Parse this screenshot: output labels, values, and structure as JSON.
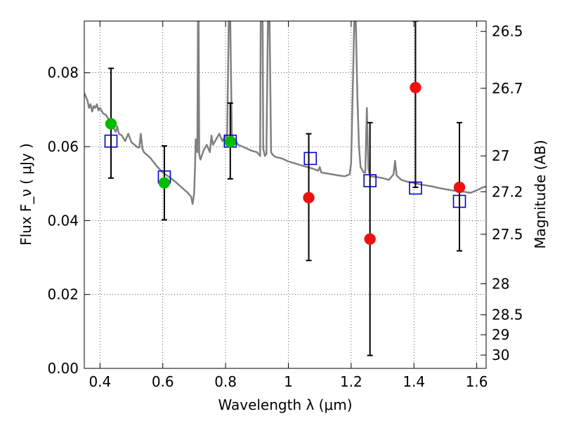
{
  "chart_data": {
    "type": "scatter",
    "xlabel": "Wavelength  λ (μm)",
    "ylabel": "Flux  F_ν  ( μJy )",
    "ylabel_right": "Magnitude (AB)",
    "xlim": [
      0.35,
      1.63
    ],
    "ylim": [
      0.0,
      0.094
    ],
    "x_ticks": [
      0.4,
      0.6,
      0.8,
      1.0,
      1.2,
      1.4,
      1.6
    ],
    "x_tick_labels": [
      "0.4",
      "0.6",
      "0.8",
      "1",
      "1.2",
      "1.4",
      "1.6"
    ],
    "y_ticks": [
      0.0,
      0.02,
      0.04,
      0.06,
      0.08
    ],
    "y_tick_labels": [
      "0.00",
      "0.02",
      "0.04",
      "0.06",
      "0.08"
    ],
    "right_ticks": [
      {
        "label": "26.5",
        "flux": 0.0912
      },
      {
        "label": "26.7",
        "flux": 0.0758
      },
      {
        "label": "27",
        "flux": 0.0575
      },
      {
        "label": "27.2",
        "flux": 0.0478
      },
      {
        "label": "27.5",
        "flux": 0.0363
      },
      {
        "label": "28",
        "flux": 0.0229
      },
      {
        "label": "28.5",
        "flux": 0.0145
      },
      {
        "label": "29",
        "flux": 0.0091
      },
      {
        "label": "30",
        "flux": 0.0036
      }
    ],
    "grid": true,
    "series": [
      {
        "kind": "template-spectrum",
        "color": "#808080",
        "points": [
          [
            0.35,
            0.0745
          ],
          [
            0.36,
            0.0725
          ],
          [
            0.365,
            0.0705
          ],
          [
            0.37,
            0.0715
          ],
          [
            0.375,
            0.0695
          ],
          [
            0.38,
            0.071
          ],
          [
            0.385,
            0.0705
          ],
          [
            0.39,
            0.0715
          ],
          [
            0.395,
            0.0698
          ],
          [
            0.4,
            0.0705
          ],
          [
            0.41,
            0.069
          ],
          [
            0.42,
            0.0685
          ],
          [
            0.43,
            0.067
          ],
          [
            0.44,
            0.0655
          ],
          [
            0.45,
            0.064
          ],
          [
            0.455,
            0.0655
          ],
          [
            0.46,
            0.0635
          ],
          [
            0.47,
            0.063
          ],
          [
            0.48,
            0.0615
          ],
          [
            0.49,
            0.0635
          ],
          [
            0.5,
            0.0612
          ],
          [
            0.51,
            0.0605
          ],
          [
            0.52,
            0.0598
          ],
          [
            0.525,
            0.0598
          ],
          [
            0.53,
            0.0635
          ],
          [
            0.535,
            0.0595
          ],
          [
            0.54,
            0.0585
          ],
          [
            0.56,
            0.057
          ],
          [
            0.58,
            0.0548
          ],
          [
            0.6,
            0.053
          ],
          [
            0.62,
            0.0518
          ],
          [
            0.64,
            0.0505
          ],
          [
            0.66,
            0.049
          ],
          [
            0.68,
            0.0475
          ],
          [
            0.69,
            0.0465
          ],
          [
            0.695,
            0.0445
          ],
          [
            0.7,
            0.0475
          ],
          [
            0.703,
            0.055
          ],
          [
            0.705,
            0.062
          ],
          [
            0.708,
            0.0605
          ],
          [
            0.71,
            0.0585
          ],
          [
            0.712,
            0.094
          ],
          [
            0.714,
            0.094
          ],
          [
            0.716,
            0.058
          ],
          [
            0.72,
            0.0565
          ],
          [
            0.73,
            0.059
          ],
          [
            0.74,
            0.0605
          ],
          [
            0.75,
            0.0585
          ],
          [
            0.755,
            0.063
          ],
          [
            0.76,
            0.0605
          ],
          [
            0.77,
            0.062
          ],
          [
            0.78,
            0.0635
          ],
          [
            0.79,
            0.0615
          ],
          [
            0.8,
            0.063
          ],
          [
            0.805,
            0.0615
          ],
          [
            0.81,
            0.094
          ],
          [
            0.815,
            0.094
          ],
          [
            0.82,
            0.063
          ],
          [
            0.83,
            0.062
          ],
          [
            0.84,
            0.0605
          ],
          [
            0.86,
            0.0598
          ],
          [
            0.88,
            0.059
          ],
          [
            0.9,
            0.0585
          ],
          [
            0.91,
            0.0575
          ],
          [
            0.912,
            0.094
          ],
          [
            0.918,
            0.094
          ],
          [
            0.92,
            0.0595
          ],
          [
            0.925,
            0.0575
          ],
          [
            0.93,
            0.058
          ],
          [
            0.935,
            0.094
          ],
          [
            0.94,
            0.094
          ],
          [
            0.945,
            0.0585
          ],
          [
            0.95,
            0.0578
          ],
          [
            0.96,
            0.0572
          ],
          [
            0.98,
            0.0568
          ],
          [
            1.0,
            0.056
          ],
          [
            1.02,
            0.0555
          ],
          [
            1.04,
            0.055
          ],
          [
            1.06,
            0.0545
          ],
          [
            1.08,
            0.054
          ],
          [
            1.095,
            0.0535
          ],
          [
            1.1,
            0.0545
          ],
          [
            1.105,
            0.053
          ],
          [
            1.12,
            0.0528
          ],
          [
            1.14,
            0.0525
          ],
          [
            1.16,
            0.0522
          ],
          [
            1.18,
            0.052
          ],
          [
            1.195,
            0.0525
          ],
          [
            1.2,
            0.0555
          ],
          [
            1.205,
            0.075
          ],
          [
            1.21,
            0.094
          ],
          [
            1.215,
            0.094
          ],
          [
            1.22,
            0.073
          ],
          [
            1.225,
            0.06
          ],
          [
            1.23,
            0.0545
          ],
          [
            1.24,
            0.053
          ],
          [
            1.245,
            0.053
          ],
          [
            1.25,
            0.0705
          ],
          [
            1.255,
            0.054
          ],
          [
            1.26,
            0.052
          ],
          [
            1.28,
            0.0518
          ],
          [
            1.3,
            0.0515
          ],
          [
            1.32,
            0.051
          ],
          [
            1.335,
            0.0525
          ],
          [
            1.34,
            0.0562
          ],
          [
            1.345,
            0.0522
          ],
          [
            1.36,
            0.051
          ],
          [
            1.38,
            0.0505
          ],
          [
            1.4,
            0.0502
          ],
          [
            1.42,
            0.0498
          ],
          [
            1.44,
            0.0495
          ],
          [
            1.46,
            0.0492
          ],
          [
            1.48,
            0.0488
          ],
          [
            1.5,
            0.0485
          ],
          [
            1.52,
            0.0482
          ],
          [
            1.54,
            0.048
          ],
          [
            1.56,
            0.0478
          ],
          [
            1.58,
            0.0475
          ],
          [
            1.6,
            0.0482
          ],
          [
            1.62,
            0.049
          ],
          [
            1.63,
            0.0492
          ]
        ]
      },
      {
        "kind": "model-squares",
        "color": "#0000cc",
        "x": [
          0.435,
          0.605,
          0.815,
          1.07,
          1.26,
          1.405,
          1.545
        ],
        "y": [
          0.0615,
          0.0518,
          0.0615,
          0.0568,
          0.0508,
          0.0488,
          0.0452
        ]
      },
      {
        "kind": "detections",
        "color": "#00bb00",
        "x": [
          0.435,
          0.605,
          0.815
        ],
        "y": [
          0.0662,
          0.0502,
          0.0613
        ]
      },
      {
        "kind": "non-detections",
        "color": "#ee1111",
        "x": [
          1.065,
          1.26,
          1.405,
          1.545
        ],
        "y": [
          0.0462,
          0.035,
          0.076,
          0.049
        ]
      },
      {
        "kind": "error-bars",
        "color": "#000000",
        "bars": [
          {
            "x": 0.435,
            "low": 0.0515,
            "high": 0.0812
          },
          {
            "x": 0.605,
            "low": 0.0402,
            "high": 0.0602
          },
          {
            "x": 0.815,
            "low": 0.0513,
            "high": 0.0718
          },
          {
            "x": 1.065,
            "low": 0.0292,
            "high": 0.0635
          },
          {
            "x": 1.26,
            "low": 0.0035,
            "high": 0.0665
          },
          {
            "x": 1.405,
            "low": 0.049,
            "high": 0.094
          },
          {
            "x": 1.545,
            "low": 0.0318,
            "high": 0.0665
          }
        ]
      }
    ]
  }
}
